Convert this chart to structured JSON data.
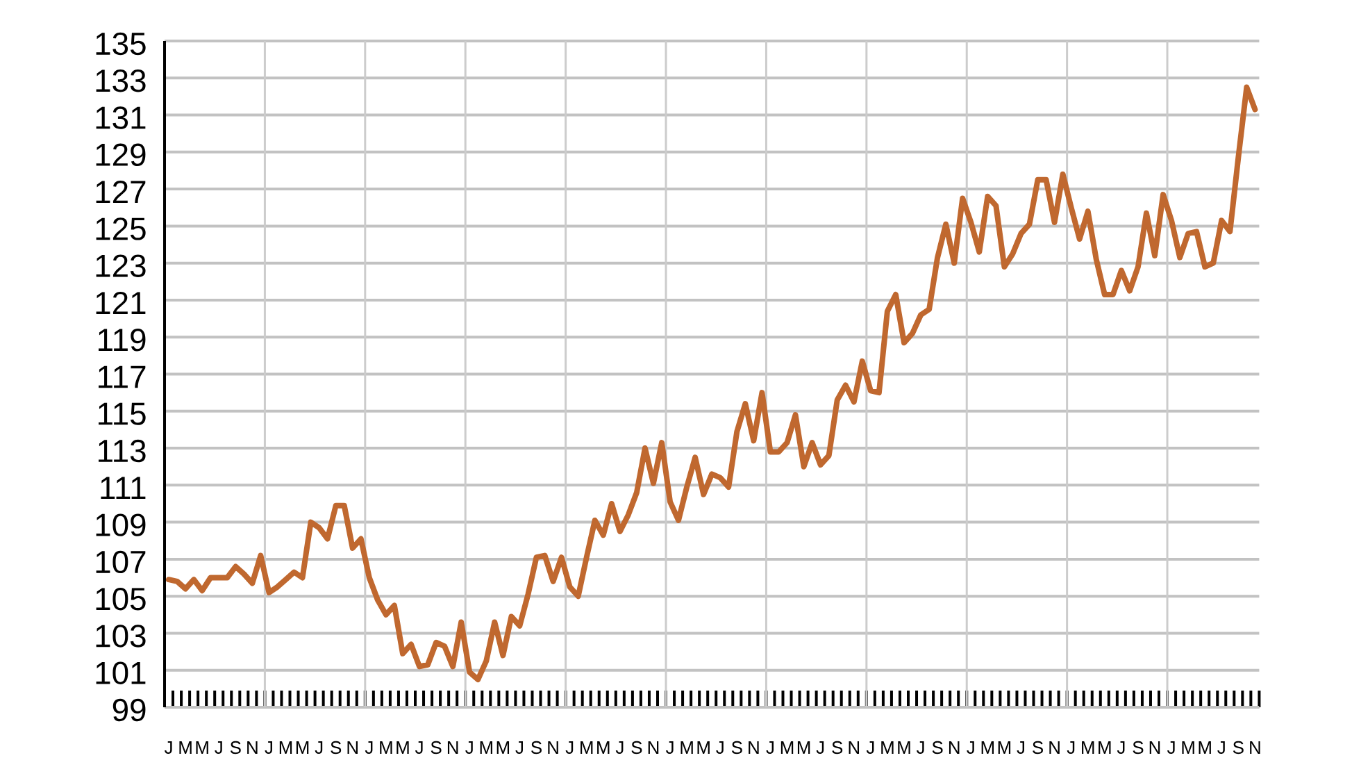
{
  "chart_data": {
    "type": "line",
    "categories": [
      "J",
      null,
      "M",
      null,
      "M",
      null,
      "J",
      null,
      "S",
      null,
      "N",
      null,
      "J",
      null,
      "M",
      null,
      "M",
      null,
      "J",
      null,
      "S",
      null,
      "N",
      null,
      "J",
      null,
      "M",
      null,
      "M",
      null,
      "J",
      null,
      "S",
      null,
      "N",
      null,
      "J",
      null,
      "M",
      null,
      "M",
      null,
      "J",
      null,
      "S",
      null,
      "N",
      null,
      "J",
      null,
      "M",
      null,
      "M",
      null,
      "J",
      null,
      "S",
      null,
      "N",
      null,
      "J",
      null,
      "M",
      null,
      "M",
      null,
      "J",
      null,
      "S",
      null,
      "N",
      null,
      "J",
      null,
      "M",
      null,
      "M",
      null,
      "J",
      null,
      "S",
      null,
      "N",
      null,
      "J",
      null,
      "M",
      null,
      "M",
      null,
      "J",
      null,
      "S",
      null,
      "N",
      null,
      "J",
      null,
      "M",
      null,
      "M",
      null,
      "J",
      null,
      "S",
      null,
      "N",
      null,
      "J",
      null,
      "M",
      null,
      "M",
      null,
      "J",
      null,
      "S",
      null,
      "N",
      null,
      "J",
      null,
      "M",
      null,
      "M",
      null,
      "J",
      null,
      "S",
      null,
      "N"
    ],
    "values": [
      105.9,
      105.8,
      105.4,
      105.9,
      105.3,
      106.0,
      106.0,
      106.0,
      106.6,
      106.2,
      105.7,
      107.2,
      105.2,
      105.5,
      105.9,
      106.3,
      106.0,
      109.0,
      108.7,
      108.1,
      109.9,
      109.9,
      107.6,
      108.1,
      106.0,
      104.8,
      104.0,
      104.5,
      101.9,
      102.4,
      101.2,
      101.3,
      102.5,
      102.3,
      101.2,
      103.6,
      100.9,
      100.5,
      101.5,
      103.6,
      101.8,
      103.9,
      103.4,
      105.1,
      107.1,
      107.2,
      105.8,
      107.1,
      105.5,
      105.0,
      107.1,
      109.1,
      108.3,
      110.0,
      108.5,
      109.4,
      110.6,
      113.0,
      111.1,
      113.3,
      110.1,
      109.1,
      110.9,
      112.5,
      110.5,
      111.6,
      111.4,
      110.9,
      113.9,
      115.4,
      113.4,
      116.0,
      112.8,
      112.8,
      113.3,
      114.8,
      112.0,
      113.3,
      112.1,
      112.6,
      115.6,
      116.4,
      115.5,
      117.7,
      116.1,
      116.0,
      120.4,
      121.3,
      118.7,
      119.2,
      120.2,
      120.5,
      123.3,
      125.1,
      123.0,
      126.5,
      125.2,
      123.6,
      126.6,
      126.1,
      122.8,
      123.5,
      124.6,
      125.1,
      127.5,
      127.5,
      125.2,
      127.8,
      126.0,
      124.3,
      125.8,
      123.2,
      121.3,
      121.3,
      122.6,
      121.5,
      122.8,
      125.7,
      123.4,
      126.7,
      125.3,
      123.3,
      124.6,
      124.7,
      122.8,
      123.0,
      125.3,
      124.7,
      128.7,
      132.5,
      131.3
    ],
    "color": "#c0682f",
    "ylim": [
      99,
      135
    ],
    "yticks": [
      99,
      101,
      103,
      105,
      107,
      109,
      111,
      113,
      115,
      117,
      119,
      121,
      123,
      125,
      127,
      129,
      131,
      133,
      135
    ],
    "grid": true,
    "marker": "none",
    "line_style": "solid"
  }
}
